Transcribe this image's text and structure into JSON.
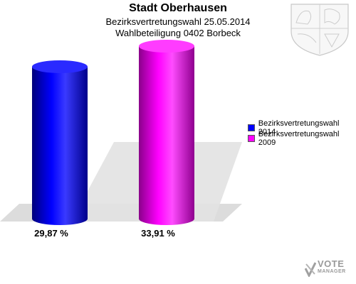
{
  "header": {
    "title": "Stadt Oberhausen",
    "subtitle1": "Bezirksvertretungswahl 25.05.2014",
    "subtitle2": "Wahlbeteiligung 0402 Borbeck"
  },
  "chart_data": {
    "type": "bar",
    "style": "3d-cylinder",
    "categories": [
      "Bezirksvertretungswahl 2014",
      "Bezirksvertretungswahl 2009"
    ],
    "values": [
      29.87,
      33.91
    ],
    "value_labels": [
      "29,87 %",
      "33,91 %"
    ],
    "colors": [
      "#0000ff",
      "#ff00ff"
    ],
    "ylim": [
      0,
      33.91
    ],
    "grid": false,
    "legend": "right",
    "title": "Stadt Oberhausen"
  },
  "legend": {
    "items": [
      {
        "label": "Bezirksvertretungswahl 2014",
        "color": "#0000ff"
      },
      {
        "label": "Bezirksvertretungswahl 2009",
        "color": "#ff00ff"
      }
    ]
  },
  "logo": {
    "line1": "VOTE",
    "line2": "MANAGER"
  },
  "crest": {
    "icon": "coat-of-arms-icon"
  }
}
